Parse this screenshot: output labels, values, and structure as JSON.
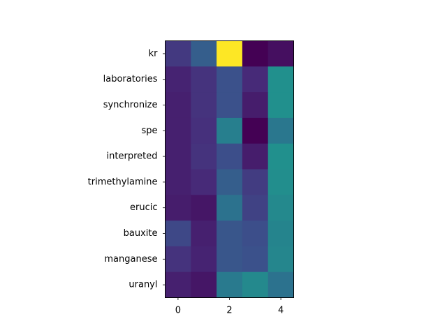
{
  "chart_data": {
    "type": "heatmap",
    "title": "",
    "xlabel": "",
    "ylabel": "",
    "colormap": "viridis",
    "color_range": [
      0.0,
      1.0
    ],
    "rows": [
      "kr",
      "laboratories",
      "synchronize",
      "spe",
      "interpreted",
      "trimethylamine",
      "erucic",
      "bauxite",
      "manganese",
      "uranyl"
    ],
    "columns": [
      0,
      1,
      2,
      3,
      4
    ],
    "x_ticks": [
      0,
      2,
      4
    ],
    "values": [
      [
        0.17,
        0.3,
        1.0,
        0.0,
        0.04
      ],
      [
        0.1,
        0.15,
        0.25,
        0.12,
        0.5
      ],
      [
        0.09,
        0.15,
        0.25,
        0.08,
        0.5
      ],
      [
        0.09,
        0.14,
        0.43,
        0.0,
        0.4
      ],
      [
        0.09,
        0.15,
        0.24,
        0.08,
        0.5
      ],
      [
        0.09,
        0.12,
        0.3,
        0.18,
        0.49
      ],
      [
        0.08,
        0.06,
        0.38,
        0.2,
        0.47
      ],
      [
        0.22,
        0.09,
        0.27,
        0.24,
        0.45
      ],
      [
        0.15,
        0.1,
        0.27,
        0.25,
        0.46
      ],
      [
        0.09,
        0.06,
        0.41,
        0.47,
        0.38
      ]
    ]
  }
}
